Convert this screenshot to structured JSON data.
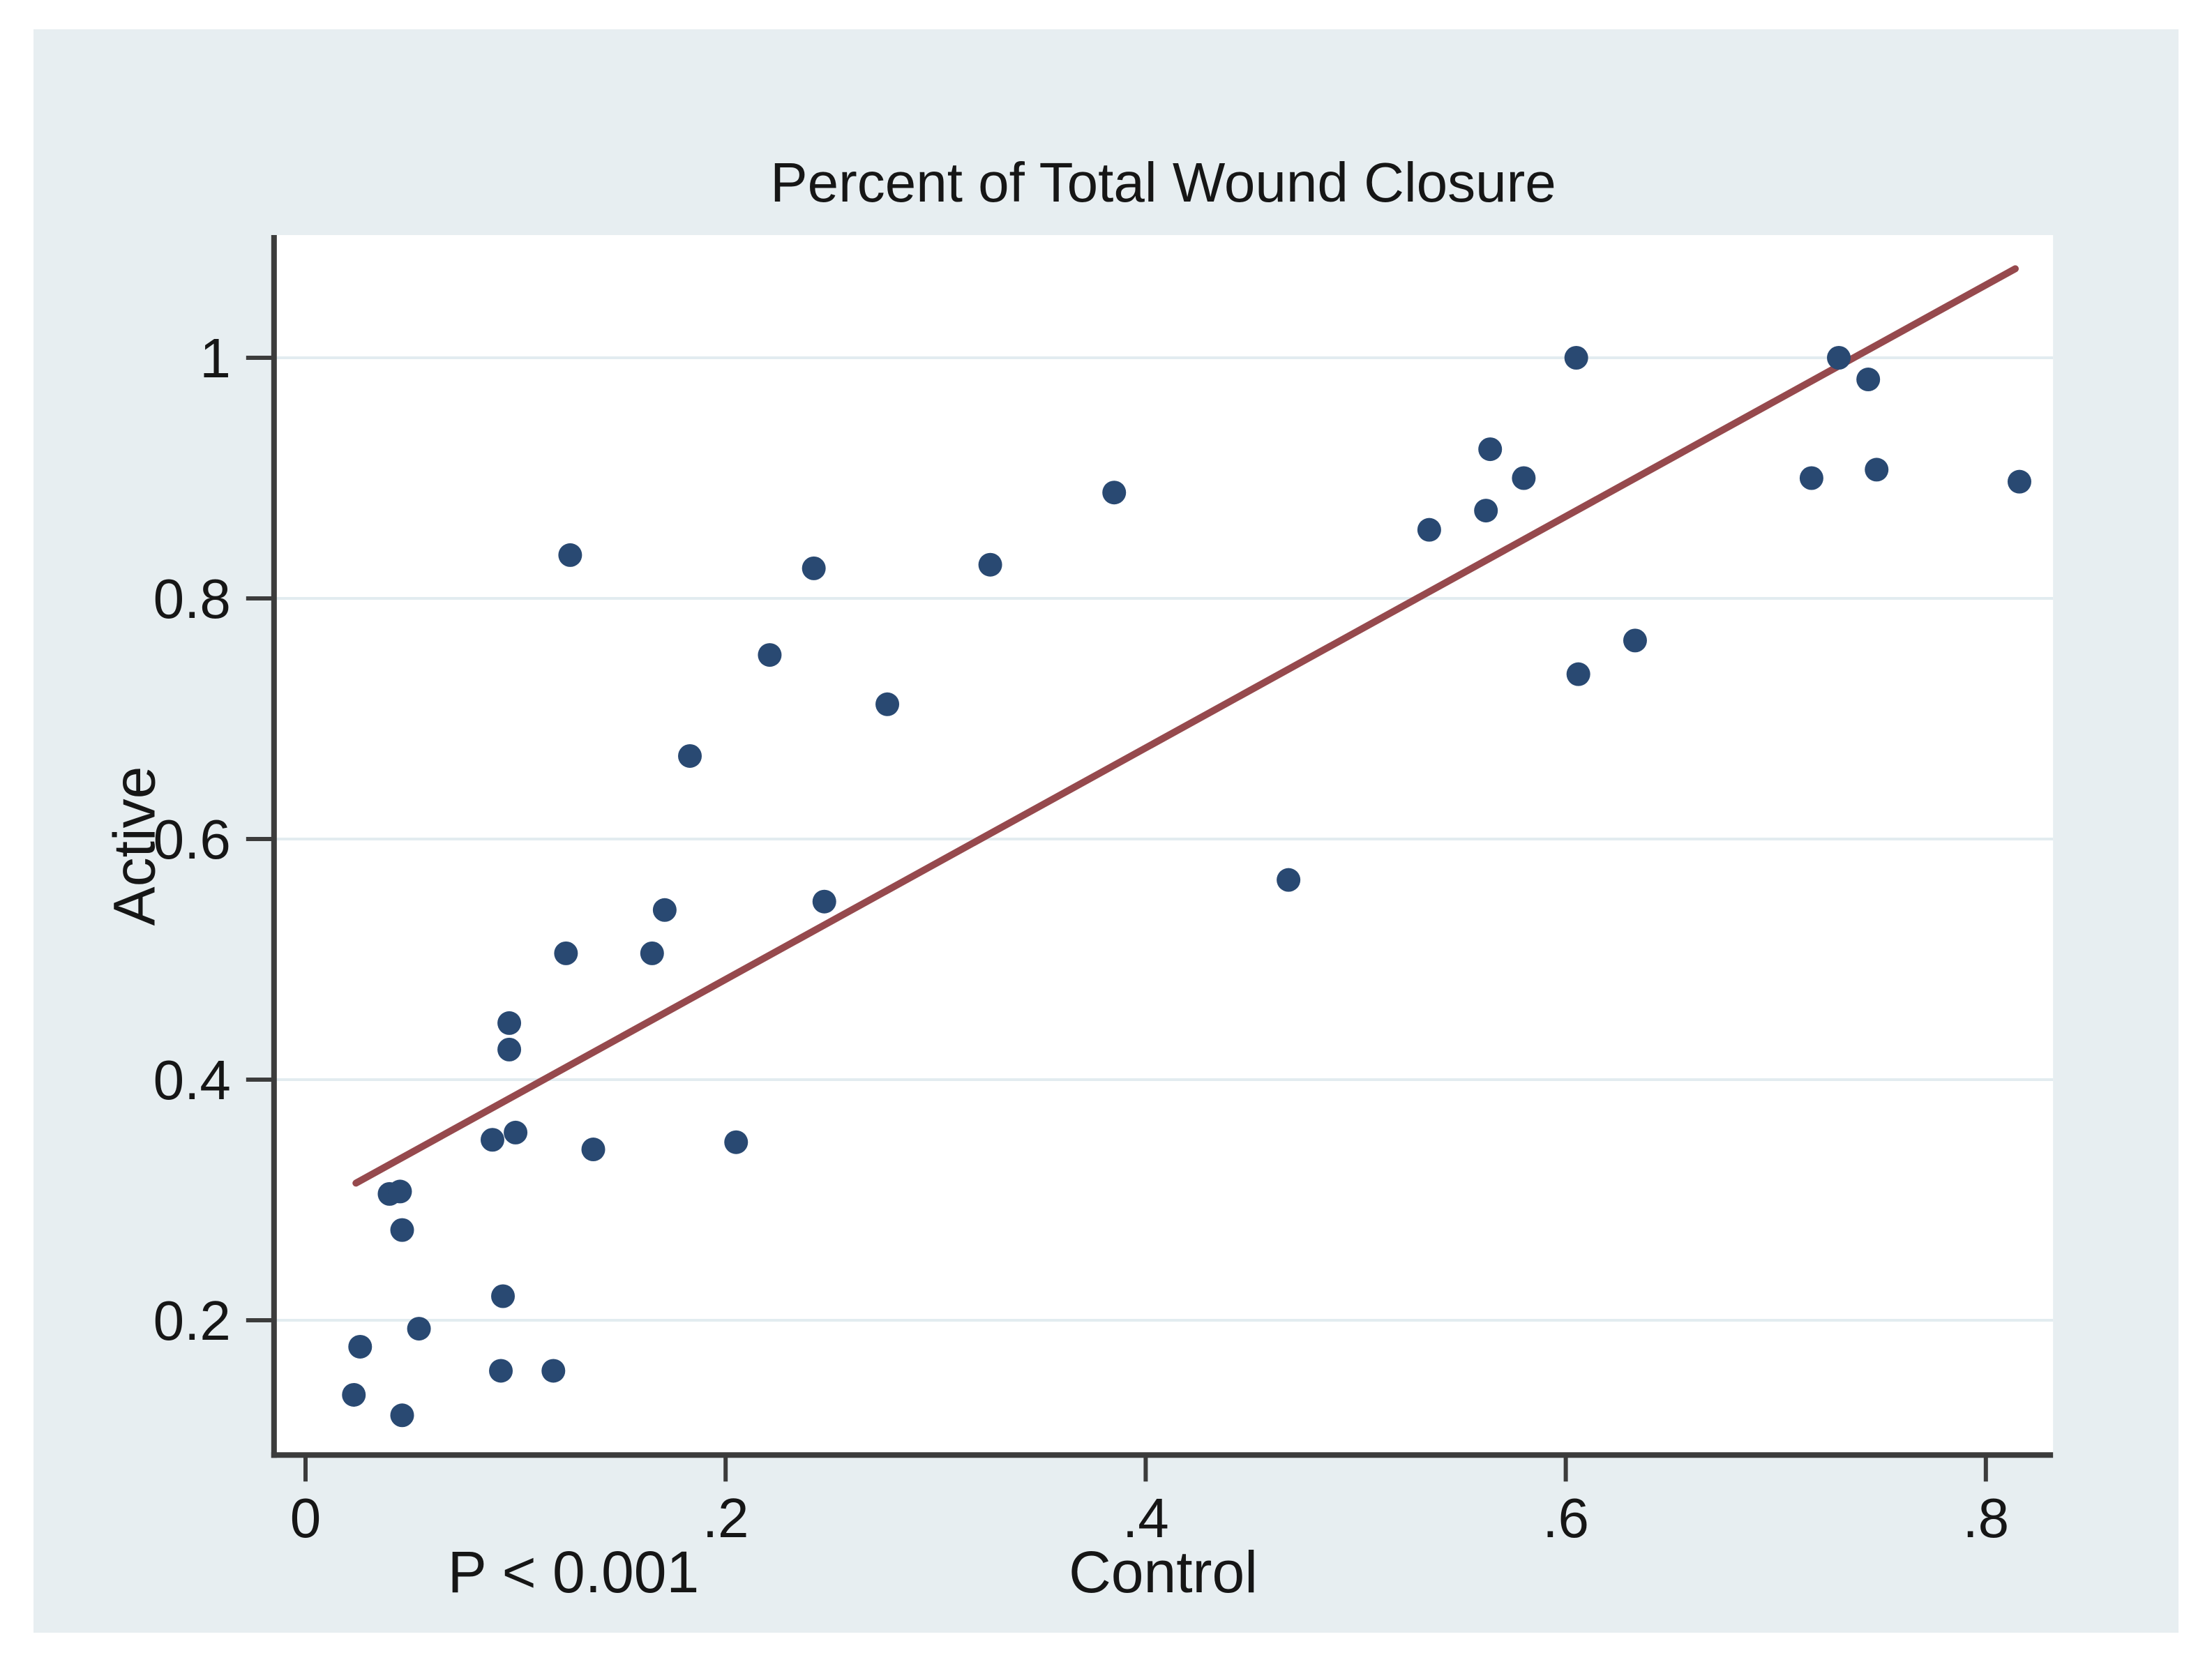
{
  "chart_data": {
    "type": "scatter",
    "title": "Percent of Total Wound Closure",
    "xlabel": "Control",
    "ylabel": "Active",
    "annotation": "P < 0.001",
    "xlim": [
      -0.015,
      0.832
    ],
    "ylim": [
      0.088,
      1.102
    ],
    "grid": "horizontal",
    "legend": "none",
    "xticks": [
      {
        "value": 0.0,
        "label": "0"
      },
      {
        "value": 0.2,
        "label": ".2"
      },
      {
        "value": 0.4,
        "label": ".4"
      },
      {
        "value": 0.6,
        "label": ".6"
      },
      {
        "value": 0.8,
        "label": ".8"
      }
    ],
    "yticks": [
      {
        "value": 0.2,
        "label": "0.2"
      },
      {
        "value": 0.4,
        "label": "0.4"
      },
      {
        "value": 0.6,
        "label": "0.6"
      },
      {
        "value": 0.8,
        "label": "0.8"
      },
      {
        "value": 1.0,
        "label": "1"
      }
    ],
    "points": [
      [
        0.126,
        0.836
      ],
      [
        0.242,
        0.825
      ],
      [
        0.221,
        0.753
      ],
      [
        0.277,
        0.712
      ],
      [
        0.183,
        0.669
      ],
      [
        0.385,
        0.888
      ],
      [
        0.326,
        0.828
      ],
      [
        0.535,
        0.857
      ],
      [
        0.605,
        1.0
      ],
      [
        0.73,
        1.0
      ],
      [
        0.744,
        0.982
      ],
      [
        0.717,
        0.9
      ],
      [
        0.748,
        0.907
      ],
      [
        0.816,
        0.897
      ],
      [
        0.564,
        0.924
      ],
      [
        0.58,
        0.9
      ],
      [
        0.562,
        0.873
      ],
      [
        0.633,
        0.765
      ],
      [
        0.606,
        0.737
      ],
      [
        0.171,
        0.541
      ],
      [
        0.124,
        0.505
      ],
      [
        0.165,
        0.505
      ],
      [
        0.097,
        0.447
      ],
      [
        0.097,
        0.425
      ],
      [
        0.089,
        0.35
      ],
      [
        0.1,
        0.356
      ],
      [
        0.137,
        0.342
      ],
      [
        0.205,
        0.348
      ],
      [
        0.04,
        0.305
      ],
      [
        0.045,
        0.307
      ],
      [
        0.046,
        0.275
      ],
      [
        0.094,
        0.22
      ],
      [
        0.054,
        0.193
      ],
      [
        0.026,
        0.178
      ],
      [
        0.093,
        0.158
      ],
      [
        0.118,
        0.158
      ],
      [
        0.023,
        0.138
      ],
      [
        0.046,
        0.121
      ],
      [
        0.247,
        0.548
      ],
      [
        0.468,
        0.566
      ]
    ],
    "fit_line": {
      "x1": 0.024,
      "y1": 0.314,
      "x2": 0.814,
      "y2": 1.074
    },
    "colors": {
      "background": "#e7eef1",
      "plot_background": "#ffffff",
      "gridline": "#e2ecf0",
      "axis": "#3c3c3c",
      "point": "#294972",
      "fit_line": "#96494d",
      "text": "#161616"
    }
  }
}
